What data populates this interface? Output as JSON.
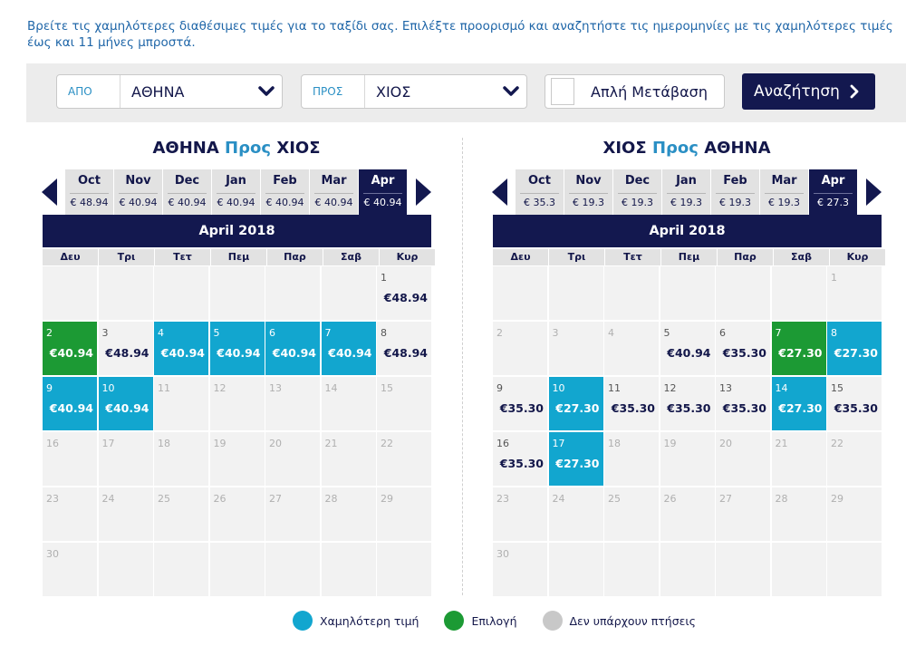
{
  "intro": "Βρείτε τις χαμηλότερες διαθέσιμες τιμές για το ταξίδι σας. Επιλέξτε προορισμό και αναζητήστε τις ημερομηνίες με τις χαμηλότερες τιμές έως και 11 μήνες μπροστά.",
  "search": {
    "from_label": "ΑΠΟ",
    "from_value": "ΑΘΗΝΑ",
    "to_label": "ΠΡΟΣ",
    "to_value": "ΧΙΟΣ",
    "oneway_label": "Απλή Μετάβαση",
    "button_label": "Αναζήτηση"
  },
  "colors": {
    "navy": "#13184f",
    "low": "#12a6cf",
    "selected": "#1c9a34",
    "none": "#c8c8c8",
    "accent": "#2a8fc4"
  },
  "weekdays": [
    "Δευ",
    "Τρι",
    "Τετ",
    "Πεμ",
    "Παρ",
    "Σαβ",
    "Κυρ"
  ],
  "outbound": {
    "origin": "ΑΘΗΝΑ",
    "word": "Προς",
    "dest": "ΧΙΟΣ",
    "month_title": "April 2018",
    "months": [
      {
        "name": "Oct",
        "price": "€ 48.94"
      },
      {
        "name": "Nov",
        "price": "€ 40.94"
      },
      {
        "name": "Dec",
        "price": "€ 40.94"
      },
      {
        "name": "Jan",
        "price": "€ 40.94"
      },
      {
        "name": "Feb",
        "price": "€ 40.94"
      },
      {
        "name": "Mar",
        "price": "€ 40.94"
      },
      {
        "name": "Apr",
        "price": "€ 40.94",
        "active": true
      }
    ],
    "lead_blanks": 6,
    "days": [
      {
        "d": "1",
        "p": "€48.94"
      },
      {
        "d": "2",
        "p": "€40.94",
        "s": "sel"
      },
      {
        "d": "3",
        "p": "€48.94"
      },
      {
        "d": "4",
        "p": "€40.94",
        "s": "low"
      },
      {
        "d": "5",
        "p": "€40.94",
        "s": "low"
      },
      {
        "d": "6",
        "p": "€40.94",
        "s": "low"
      },
      {
        "d": "7",
        "p": "€40.94",
        "s": "low"
      },
      {
        "d": "8",
        "p": "€48.94"
      },
      {
        "d": "9",
        "p": "€40.94",
        "s": "low"
      },
      {
        "d": "10",
        "p": "€40.94",
        "s": "low"
      },
      {
        "d": "11"
      },
      {
        "d": "12"
      },
      {
        "d": "13"
      },
      {
        "d": "14"
      },
      {
        "d": "15"
      },
      {
        "d": "16"
      },
      {
        "d": "17"
      },
      {
        "d": "18"
      },
      {
        "d": "19"
      },
      {
        "d": "20"
      },
      {
        "d": "21"
      },
      {
        "d": "22"
      },
      {
        "d": "23"
      },
      {
        "d": "24"
      },
      {
        "d": "25"
      },
      {
        "d": "26"
      },
      {
        "d": "27"
      },
      {
        "d": "28"
      },
      {
        "d": "29"
      },
      {
        "d": "30"
      }
    ]
  },
  "inbound": {
    "origin": "ΧΙΟΣ",
    "word": "Προς",
    "dest": "ΑΘΗΝΑ",
    "month_title": "April 2018",
    "months": [
      {
        "name": "Oct",
        "price": "€ 35.3"
      },
      {
        "name": "Nov",
        "price": "€ 19.3"
      },
      {
        "name": "Dec",
        "price": "€ 19.3"
      },
      {
        "name": "Jan",
        "price": "€ 19.3"
      },
      {
        "name": "Feb",
        "price": "€ 19.3"
      },
      {
        "name": "Mar",
        "price": "€ 19.3"
      },
      {
        "name": "Apr",
        "price": "€ 27.3",
        "active": true
      }
    ],
    "lead_blanks": 6,
    "days": [
      {
        "d": "1"
      },
      {
        "d": "2"
      },
      {
        "d": "3"
      },
      {
        "d": "4"
      },
      {
        "d": "5",
        "p": "€40.94"
      },
      {
        "d": "6",
        "p": "€35.30"
      },
      {
        "d": "7",
        "p": "€27.30",
        "s": "sel"
      },
      {
        "d": "8",
        "p": "€27.30",
        "s": "low"
      },
      {
        "d": "9",
        "p": "€35.30"
      },
      {
        "d": "10",
        "p": "€27.30",
        "s": "low"
      },
      {
        "d": "11",
        "p": "€35.30"
      },
      {
        "d": "12",
        "p": "€35.30"
      },
      {
        "d": "13",
        "p": "€35.30"
      },
      {
        "d": "14",
        "p": "€27.30",
        "s": "low"
      },
      {
        "d": "15",
        "p": "€35.30"
      },
      {
        "d": "16",
        "p": "€35.30"
      },
      {
        "d": "17",
        "p": "€27.30",
        "s": "low"
      },
      {
        "d": "18"
      },
      {
        "d": "19"
      },
      {
        "d": "20"
      },
      {
        "d": "21"
      },
      {
        "d": "22"
      },
      {
        "d": "23"
      },
      {
        "d": "24"
      },
      {
        "d": "25"
      },
      {
        "d": "26"
      },
      {
        "d": "27"
      },
      {
        "d": "28"
      },
      {
        "d": "29"
      },
      {
        "d": "30"
      }
    ]
  },
  "legend": {
    "low": "Χαμηλότερη τιμή",
    "selected": "Επιλογή",
    "none": "Δεν υπάρχουν πτήσεις"
  }
}
